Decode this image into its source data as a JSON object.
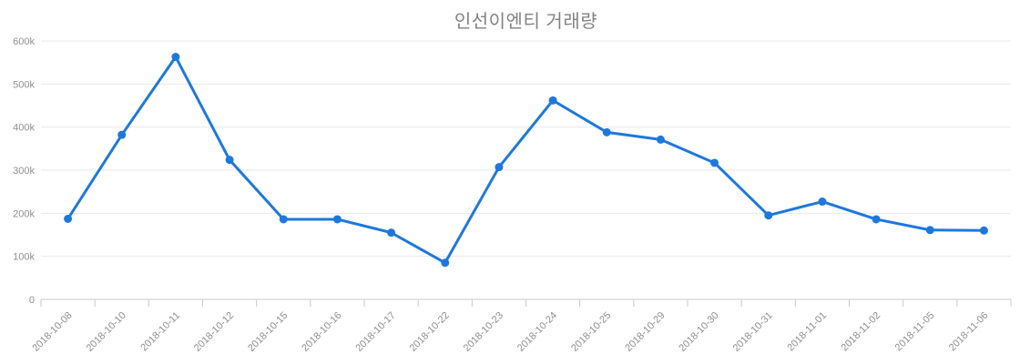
{
  "page": {
    "background": "#ffffff"
  },
  "chart_data": {
    "type": "line",
    "title": "인선이엔티 거래량",
    "xlabel": "",
    "ylabel": "",
    "categories": [
      "2018-10-08",
      "2018-10-10",
      "2018-10-11",
      "2018-10-12",
      "2018-10-15",
      "2018-10-16",
      "2018-10-17",
      "2018-10-22",
      "2018-10-23",
      "2018-10-24",
      "2018-10-25",
      "2018-10-29",
      "2018-10-30",
      "2018-10-31",
      "2018-11-01",
      "2018-11-02",
      "2018-11-05",
      "2018-11-06"
    ],
    "series": [
      {
        "name": "거래량",
        "color": "#1e78dc",
        "values": [
          187000,
          382000,
          563000,
          324000,
          186000,
          186000,
          155000,
          85000,
          307000,
          462000,
          388000,
          371000,
          317000,
          195000,
          227000,
          186000,
          161000,
          160000
        ]
      }
    ],
    "ylim": [
      0,
      600000
    ],
    "yticks": [
      0,
      100000,
      200000,
      300000,
      400000,
      500000,
      600000
    ],
    "ytick_labels": [
      "0",
      "100k",
      "200k",
      "300k",
      "400k",
      "500k",
      "600k"
    ],
    "grid": "horizontal",
    "legend": "none",
    "x_label_rotation": -45,
    "colors": {
      "grid": "#e8e8e8",
      "axis": "#c9c9c9",
      "tick_label": "#8f8f8f",
      "title": "#828282"
    }
  }
}
